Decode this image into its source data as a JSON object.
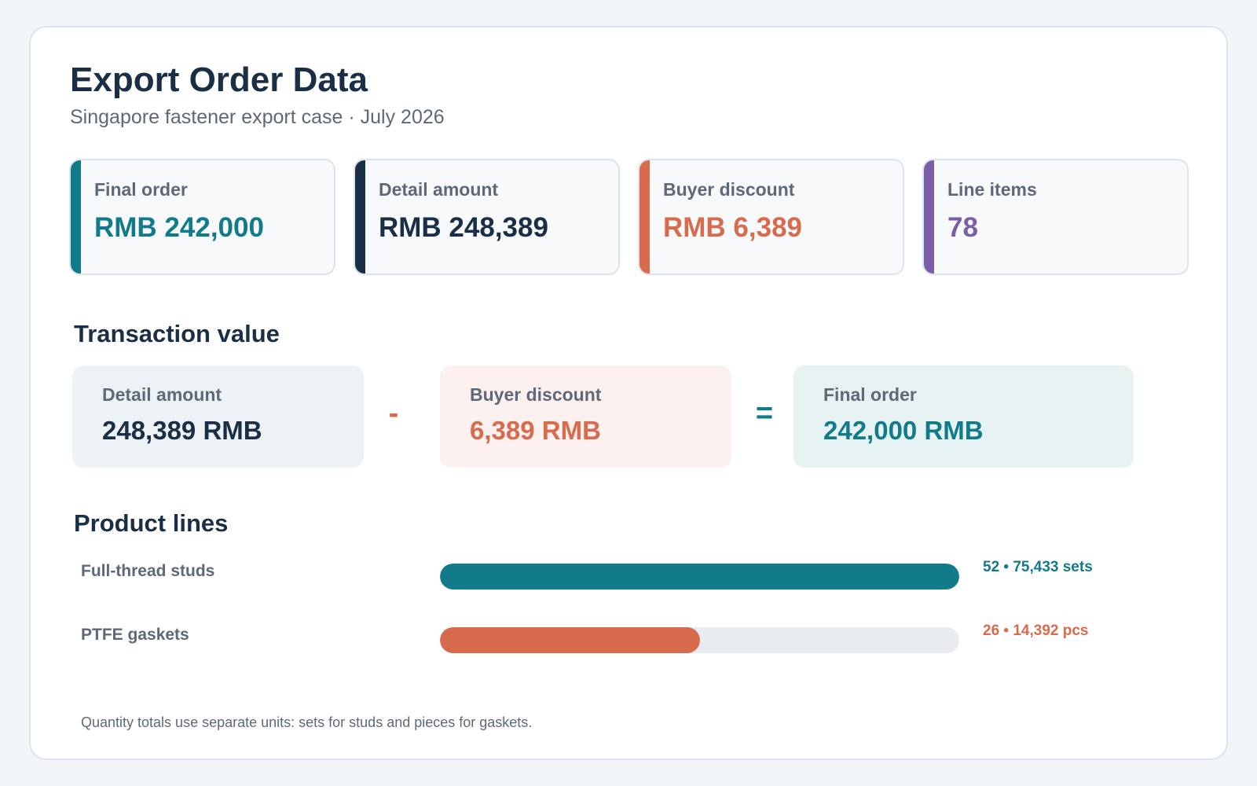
{
  "header": {
    "title": "Export Order Data",
    "subtitle": "Singapore fastener export case · July 2026"
  },
  "kpis": [
    {
      "label": "Final order",
      "value": "RMB 242,000",
      "color": "#127b89"
    },
    {
      "label": "Detail amount",
      "value": "RMB 248,389",
      "color": "#1a2e46"
    },
    {
      "label": "Buyer discount",
      "value": "RMB 6,389",
      "color": "#d86b4d"
    },
    {
      "label": "Line items",
      "value": "78",
      "color": "#7b5ea7"
    }
  ],
  "transaction": {
    "title": "Transaction value",
    "detail": {
      "label": "Detail amount",
      "value": "248,389 RMB"
    },
    "minus": "-",
    "discount": {
      "label": "Buyer discount",
      "value": "6,389 RMB"
    },
    "equals": "=",
    "final": {
      "label": "Final order",
      "value": "242,000 RMB"
    }
  },
  "product_lines": {
    "title": "Product lines",
    "items": [
      {
        "label": "Full-thread studs",
        "value": "52 • 75,433 sets",
        "share": 1.0,
        "color": "#127b89"
      },
      {
        "label": "PTFE gaskets",
        "value": "26 • 14,392 pcs",
        "share": 0.5,
        "color": "#d86b4d"
      }
    ]
  },
  "footnote": "Quantity totals use separate units: sets for studs and pieces for gaskets."
}
